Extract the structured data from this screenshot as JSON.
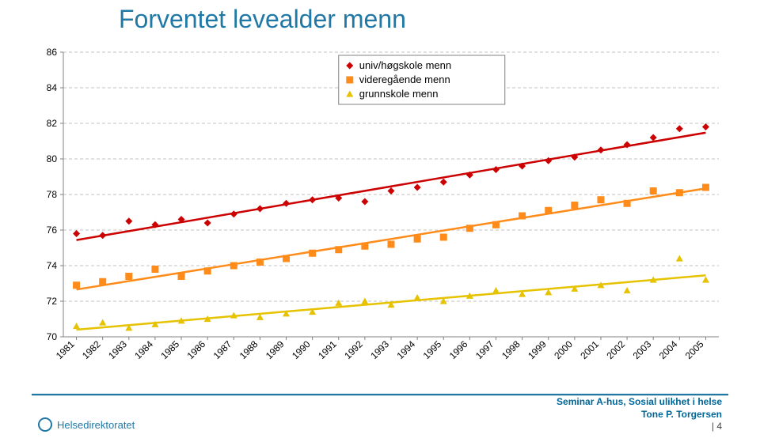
{
  "title": "Forventet levealder menn",
  "chart": {
    "type": "scatter-line",
    "background": "#ffffff",
    "grid_color": "#c0c0c0",
    "axis_color": "#808080",
    "tick_font_size": 12,
    "tick_color": "#000000",
    "ylim": [
      70,
      86
    ],
    "ytick_step": 2,
    "x_categories": [
      "1981",
      "1982",
      "1983",
      "1984",
      "1985",
      "1986",
      "1987",
      "1988",
      "1989",
      "1990",
      "1991",
      "1992",
      "1993",
      "1994",
      "1995",
      "1996",
      "1997",
      "1998",
      "1999",
      "2000",
      "2001",
      "2002",
      "2003",
      "2004",
      "2005"
    ],
    "x_label_rotation": -45,
    "legend": {
      "position": "top-right-inside",
      "border_color": "#808080",
      "items": [
        {
          "label": "univ/høgskole menn",
          "marker": "diamond",
          "color": "#cc0000"
        },
        {
          "label": "videregående menn",
          "marker": "square",
          "color": "#ff8c1a"
        },
        {
          "label": "grunnskole menn",
          "marker": "triangle",
          "color": "#e6c200"
        }
      ]
    },
    "series": [
      {
        "name": "univ/høgskole menn",
        "marker": "diamond",
        "color": "#cc0000",
        "line_color": "#cc0000",
        "marker_size": 9,
        "line_width": 2.5,
        "values": [
          75.8,
          75.7,
          76.5,
          76.3,
          76.6,
          76.4,
          76.9,
          77.2,
          77.5,
          77.7,
          77.8,
          77.6,
          78.2,
          78.4,
          78.7,
          79.1,
          79.4,
          79.6,
          79.9,
          80.1,
          80.5,
          80.8,
          81.2,
          81.7,
          81.8
        ]
      },
      {
        "name": "videregående menn",
        "marker": "square",
        "color": "#ff8c1a",
        "line_color": "#ff8c1a",
        "marker_size": 9,
        "line_width": 2.5,
        "values": [
          72.9,
          73.1,
          73.4,
          73.8,
          73.4,
          73.7,
          74.0,
          74.2,
          74.4,
          74.7,
          74.9,
          75.1,
          75.2,
          75.5,
          75.6,
          76.1,
          76.3,
          76.8,
          77.1,
          77.4,
          77.7,
          77.5,
          78.2,
          78.1,
          78.4
        ]
      },
      {
        "name": "grunnskole menn",
        "marker": "triangle",
        "color": "#e6c200",
        "line_color": "#e6c200",
        "marker_size": 9,
        "line_width": 2.5,
        "values": [
          70.6,
          70.8,
          70.5,
          70.7,
          70.9,
          71.0,
          71.2,
          71.1,
          71.3,
          71.4,
          71.9,
          72.0,
          71.8,
          72.2,
          72.0,
          72.3,
          72.6,
          72.4,
          72.5,
          72.7,
          72.9,
          72.6,
          73.2,
          74.4,
          73.2
        ]
      }
    ]
  },
  "footer": {
    "logo_text": "Helsedirektoratet",
    "seminar": "Seminar A-hus, Sosial ulikhet i helse",
    "author": "Tone P. Torgersen",
    "page": "| 4"
  },
  "colors": {
    "title": "#1f78a6",
    "footer_text": "#006699"
  }
}
